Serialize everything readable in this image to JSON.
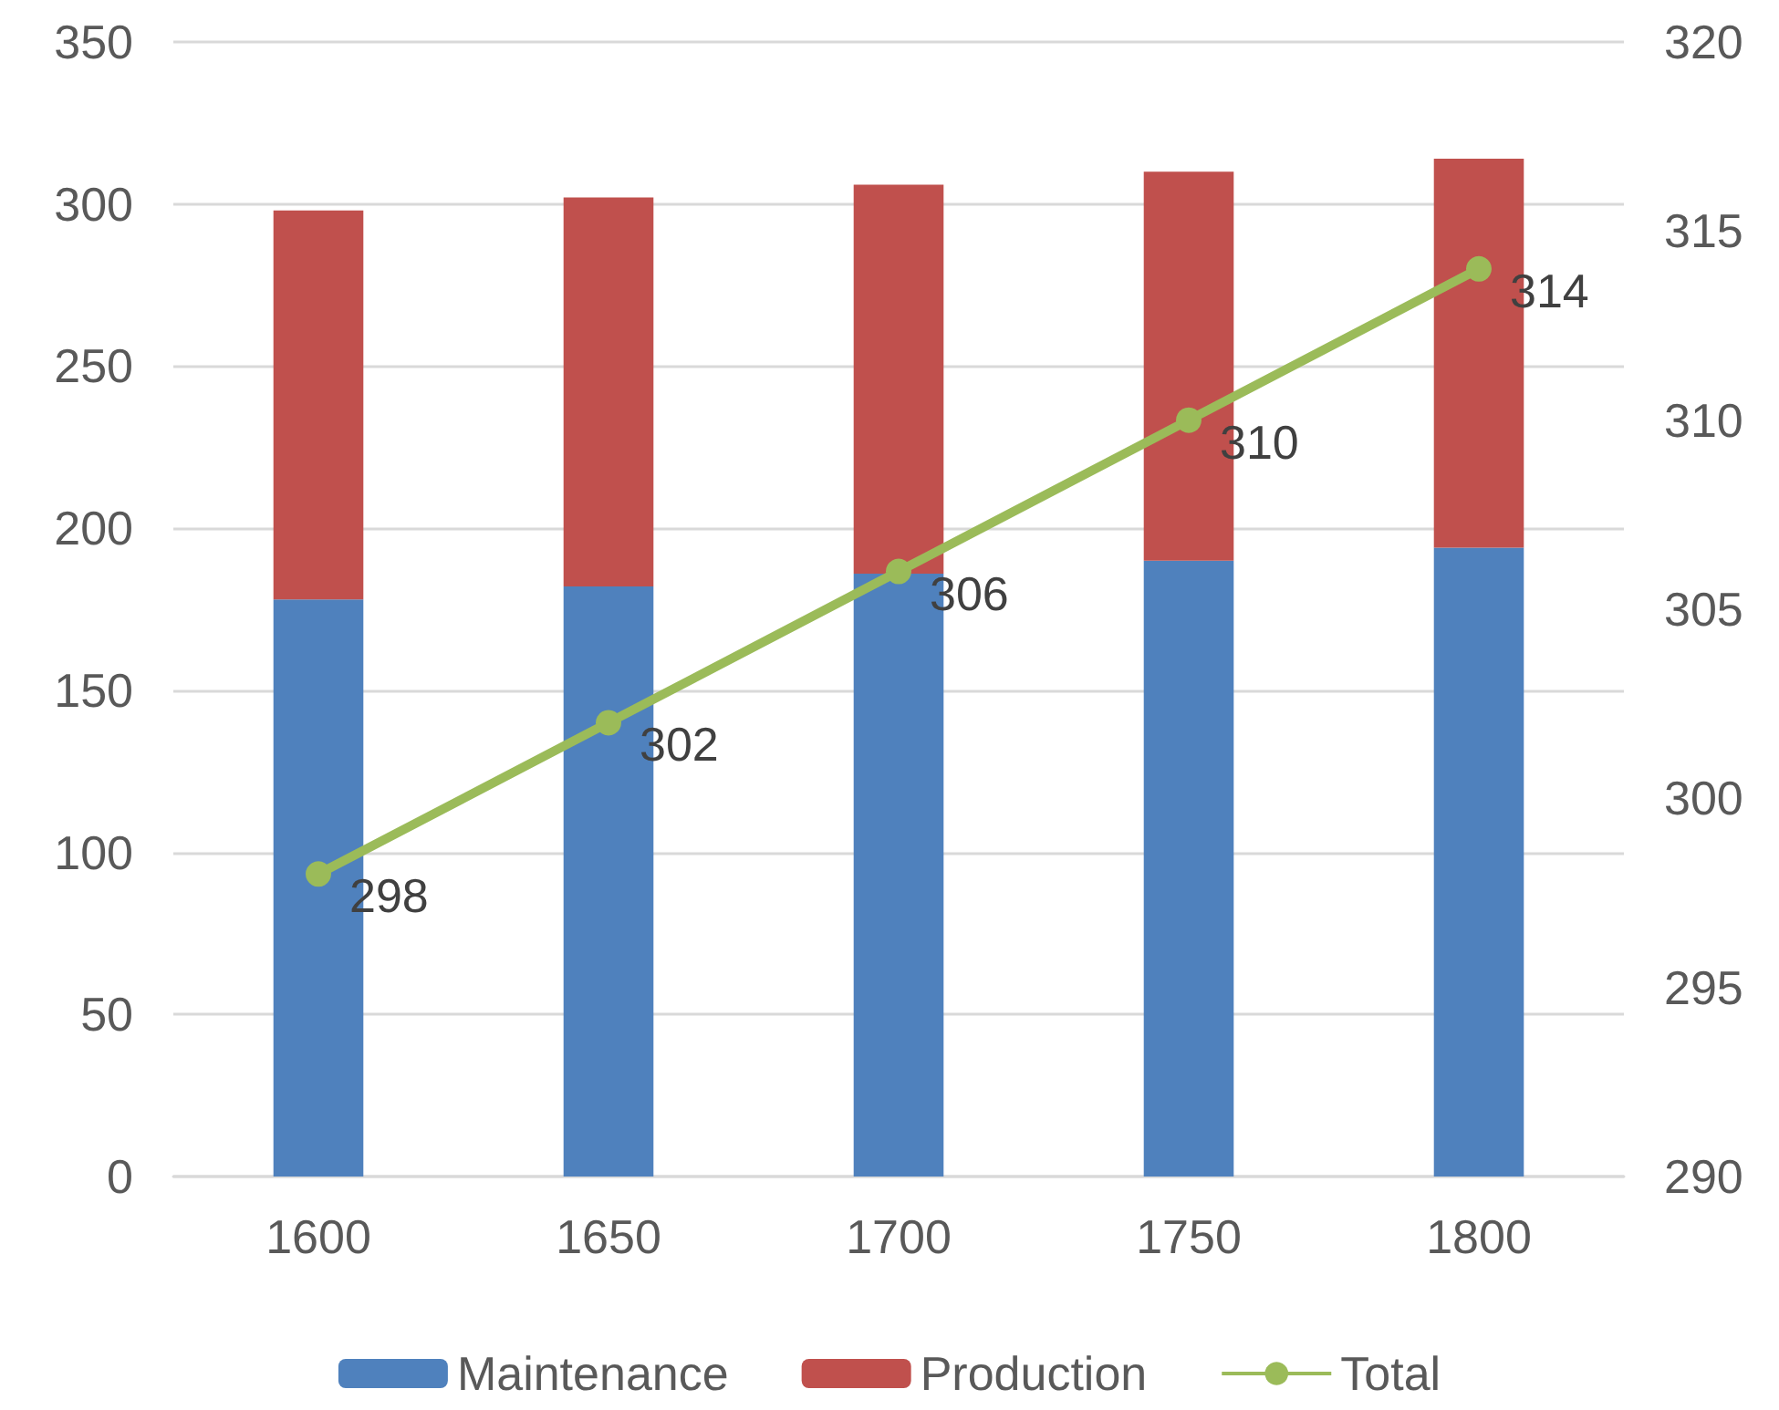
{
  "chart_data": {
    "type": "bar",
    "stacked": true,
    "categories": [
      "1600",
      "1650",
      "1700",
      "1750",
      "1800"
    ],
    "series": [
      {
        "name": "Maintenance",
        "color": "#4f81bd",
        "values": [
          178,
          182,
          186,
          190,
          194
        ]
      },
      {
        "name": "Production",
        "color": "#c0504d",
        "values": [
          120,
          120,
          120,
          120,
          120
        ]
      },
      {
        "name": "Total",
        "type": "line",
        "axis": "y2",
        "color": "#9bbb59",
        "marker": "circle",
        "values": [
          298,
          302,
          306,
          310,
          314
        ],
        "value_labels": [
          "298",
          "302",
          "306",
          "310",
          "314"
        ]
      }
    ],
    "ylim": [
      0,
      350
    ],
    "yticks": [
      0,
      50,
      100,
      150,
      200,
      250,
      300,
      350
    ],
    "y2lim": [
      290,
      320
    ],
    "y2ticks": [
      290,
      295,
      300,
      305,
      310,
      315,
      320
    ],
    "grid": "y",
    "legend": "bottom",
    "line_style": "solid"
  }
}
